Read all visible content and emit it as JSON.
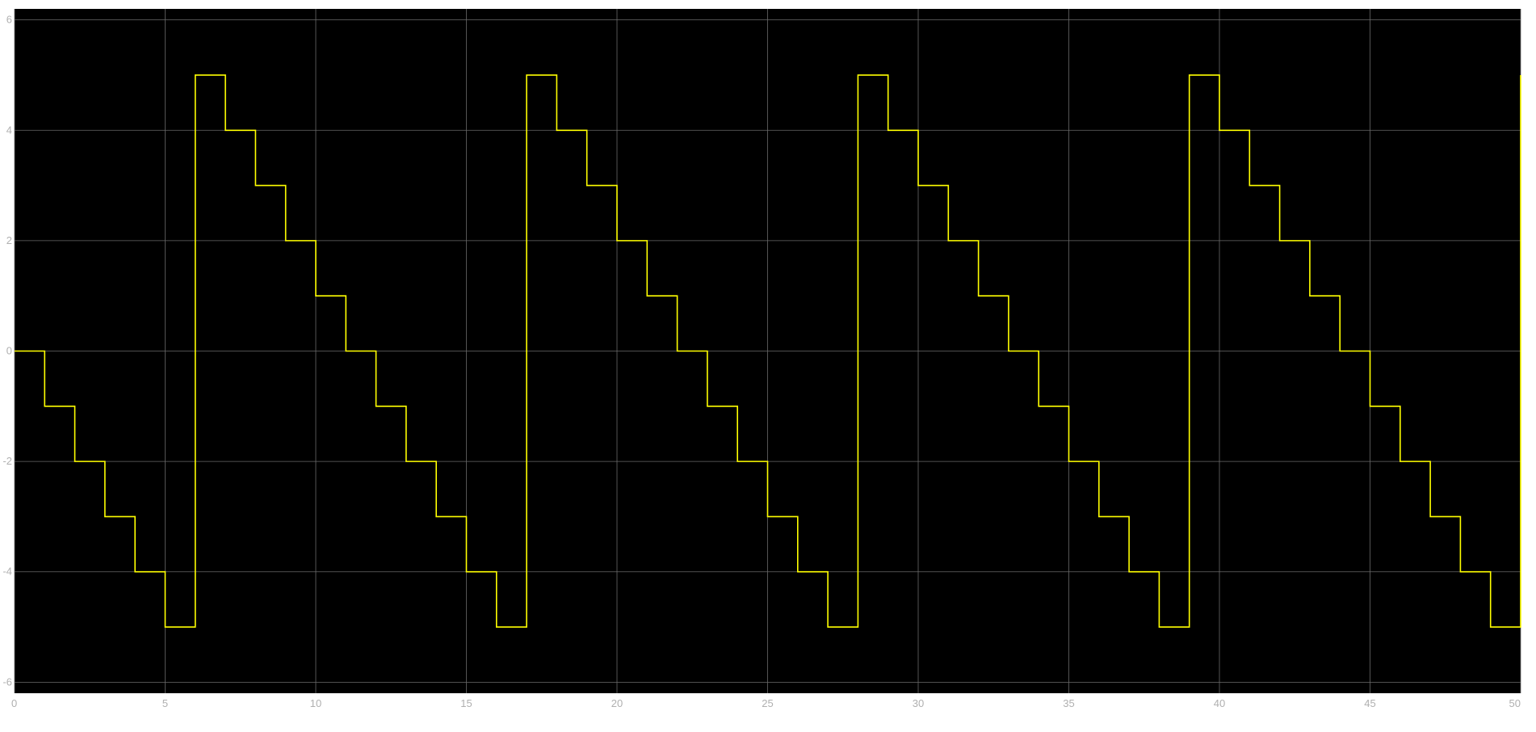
{
  "chart_data": {
    "type": "line",
    "step": true,
    "title": "",
    "xlabel": "",
    "ylabel": "",
    "xlim": [
      0,
      50
    ],
    "ylim": [
      -6.2,
      6.2
    ],
    "x_ticks": [
      "0",
      "5",
      "10",
      "15",
      "20",
      "25",
      "30",
      "35",
      "40",
      "45",
      "50"
    ],
    "y_ticks": [
      "6",
      "4",
      "2",
      "0",
      "-2",
      "-4",
      "-6"
    ],
    "grid": true,
    "background_color": "#000000",
    "grid_color": "#6a6a6a",
    "line_color": "#ffff00",
    "series": [
      {
        "x": [
          0,
          1,
          2,
          3,
          4,
          5,
          6,
          7,
          8,
          9,
          10,
          11,
          12,
          13,
          14,
          15,
          16,
          17,
          18,
          19,
          20,
          21,
          22,
          23,
          24,
          25,
          26,
          27,
          28,
          29,
          30,
          31,
          32,
          33,
          34,
          35,
          36,
          37,
          38,
          39,
          40,
          41,
          42,
          43,
          44,
          45,
          46,
          47,
          48,
          49,
          50
        ],
        "values": [
          0,
          -1,
          -2,
          -3,
          -4,
          -5,
          5,
          4,
          3,
          2,
          1,
          0,
          -1,
          -2,
          -3,
          -4,
          -5,
          5,
          4,
          3,
          2,
          1,
          0,
          -1,
          -2,
          -3,
          -4,
          -5,
          5,
          4,
          3,
          2,
          1,
          0,
          -1,
          -2,
          -3,
          -4,
          -5,
          5,
          4,
          3,
          2,
          1,
          0,
          -1,
          -2,
          -3,
          -4,
          -5,
          5
        ]
      }
    ]
  }
}
